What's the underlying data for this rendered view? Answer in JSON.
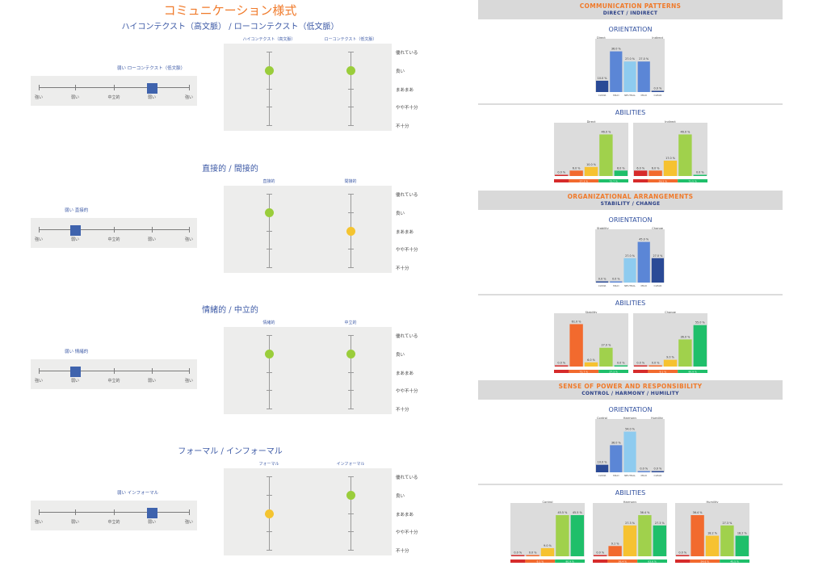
{
  "left_panel": {
    "title": "コミュニケーション様式",
    "scale_labels": [
      "優れている",
      "良い",
      "まあまあ",
      "やや不十分",
      "不十分"
    ],
    "slider_ticks": [
      "強い",
      "弱い",
      "中立的",
      "弱い",
      "強い"
    ],
    "sections": [
      {
        "title": "ハイコンテクスト（高文脈） / ローコンテクスト（低文脈）",
        "slider_caption": "弱い ローコンテクスト（低文脈）",
        "slider_position": 4,
        "columns": [
          "ハイコンテクスト（高文脈）",
          "ローコンテクスト（低文脈）"
        ],
        "ratings": [
          "良い",
          "良い"
        ],
        "dot_colors": [
          "#9acd3b",
          "#9acd3b"
        ]
      },
      {
        "title": "直接的 / 間接的",
        "slider_caption": "弱い 直接的",
        "slider_position": 2,
        "columns": [
          "直接的",
          "間接的"
        ],
        "ratings": [
          "良い",
          "まあまあ"
        ],
        "dot_colors": [
          "#9acd3b",
          "#f4c430"
        ]
      },
      {
        "title": "情緒的 / 中立的",
        "slider_caption": "弱い 情緒的",
        "slider_position": 2,
        "columns": [
          "情緒的",
          "中立的"
        ],
        "ratings": [
          "良い",
          "良い"
        ],
        "dot_colors": [
          "#9acd3b",
          "#9acd3b"
        ]
      },
      {
        "title": "フォーマル / インフォーマル",
        "slider_caption": "弱い インフォーマル",
        "slider_position": 4,
        "columns": [
          "フォーマル",
          "インフォーマル"
        ],
        "ratings": [
          "まあまあ",
          "良い"
        ],
        "dot_colors": [
          "#f4c430",
          "#9acd3b"
        ]
      }
    ]
  },
  "right_panel": {
    "orientation_heading": "ORIENTATION",
    "abilities_heading": "ABILITIES",
    "sections": [
      {
        "banner_title": "COMMUNICATION PATTERNS",
        "banner_subtitle": "DIRECT / INDIRECT"
      },
      {
        "banner_title": "ORGANIZATIONAL ARRANGEMENTS",
        "banner_subtitle": "STABILITY / CHANGE"
      },
      {
        "banner_title": "SENSE OF POWER AND RESPONSIBILITY",
        "banner_subtitle": "CONTROL / HARMONY / HUMILITY"
      }
    ]
  },
  "chart_data": [
    {
      "type": "bar",
      "title": "ORIENTATION",
      "section": "COMMUNICATION PATTERNS",
      "poles": [
        "Direct",
        "Indirect"
      ],
      "categories": [
        "CLEAR",
        "MILD",
        "NEUTRAL",
        "MILD",
        "CLEAR"
      ],
      "values": [
        10.0,
        36.0,
        27.0,
        27.0,
        0.0
      ],
      "colors": [
        "#2a4a96",
        "#5b86d6",
        "#8ecbef",
        "#5b86d6",
        "#2a4a96"
      ],
      "ylim": [
        0,
        40
      ]
    },
    {
      "type": "bar",
      "title": "ABILITIES - Direct",
      "section": "COMMUNICATION PATTERNS",
      "pole": "Direct",
      "values": [
        0.0,
        6.0,
        10.0,
        46.0,
        6.0
      ],
      "colors": [
        "#d62b2b",
        "#f26a2e",
        "#f6c231",
        "#a0d14c",
        "#1fbf6a"
      ],
      "summary": [
        "",
        "27.3 %",
        "72.7 %"
      ],
      "ylim": [
        0,
        50
      ]
    },
    {
      "type": "bar",
      "title": "ABILITIES - Indirect",
      "section": "COMMUNICATION PATTERNS",
      "pole": "Indirect",
      "values": [
        6.0,
        6.0,
        17.0,
        46.0,
        0.0
      ],
      "colors": [
        "#d62b2b",
        "#f26a2e",
        "#f6c231",
        "#a0d14c",
        "#1fbf6a"
      ],
      "summary": [
        "",
        "28.5 %",
        "71.5 %"
      ],
      "ylim": [
        0,
        50
      ]
    },
    {
      "type": "bar",
      "title": "ORIENTATION",
      "section": "ORGANIZATIONAL ARRANGEMENTS",
      "poles": [
        "Stability",
        "Change"
      ],
      "categories": [
        "CLEAR",
        "MILD",
        "NEUTRAL",
        "MILD",
        "CLEAR"
      ],
      "values": [
        0.0,
        0.0,
        27.0,
        45.0,
        27.0
      ],
      "colors": [
        "#2a4a96",
        "#5b86d6",
        "#8ecbef",
        "#5b86d6",
        "#2a4a96"
      ],
      "ylim": [
        0,
        50
      ]
    },
    {
      "type": "bar",
      "title": "ABILITIES - Stability",
      "section": "ORGANIZATIONAL ARRANGEMENTS",
      "pole": "Stability",
      "values": [
        0.0,
        61.0,
        6.0,
        27.0,
        0.0
      ],
      "colors": [
        "#d62b2b",
        "#f26a2e",
        "#f6c231",
        "#a0d14c",
        "#1fbf6a"
      ],
      "summary": [
        "",
        "72.7 %",
        "27.3 %"
      ],
      "ylim": [
        0,
        65
      ]
    },
    {
      "type": "bar",
      "title": "ABILITIES - Change",
      "section": "ORGANIZATIONAL ARRANGEMENTS",
      "pole": "Change",
      "values": [
        0.0,
        0.0,
        9.0,
        36.0,
        55.0
      ],
      "colors": [
        "#d62b2b",
        "#f26a2e",
        "#f6c231",
        "#a0d14c",
        "#1fbf6a"
      ],
      "summary": [
        "",
        "9.1 %",
        "90.9 %"
      ],
      "ylim": [
        0,
        60
      ]
    },
    {
      "type": "bar",
      "title": "ORIENTATION",
      "section": "SENSE OF POWER AND RESPONSIBILITY",
      "poles": [
        "Control",
        "Harmony",
        "Humility"
      ],
      "categories": [
        "CLEAR",
        "MILD",
        "NEUTRAL",
        "MILD",
        "CLEAR"
      ],
      "values": [
        10.0,
        36.0,
        54.0,
        0.0,
        0.0
      ],
      "colors": [
        "#2a4a96",
        "#5b86d6",
        "#8ecbef",
        "#5b86d6",
        "#2a4a96"
      ],
      "ylim": [
        0,
        60
      ]
    },
    {
      "type": "bar",
      "title": "ABILITIES - Control",
      "section": "SENSE OF POWER AND RESPONSIBILITY",
      "pole": "Control",
      "values": [
        0.0,
        0.0,
        9.0,
        45.5,
        45.5
      ],
      "colors": [
        "#d62b2b",
        "#f26a2e",
        "#f6c231",
        "#a0d14c",
        "#1fbf6a"
      ],
      "summary": [
        "",
        "9.1 %",
        "90.9 %"
      ],
      "ylim": [
        0,
        50
      ]
    },
    {
      "type": "bar",
      "title": "ABILITIES - Harmony",
      "section": "SENSE OF POWER AND RESPONSIBILITY",
      "pole": "Harmony",
      "values": [
        0.0,
        9.1,
        27.3,
        36.4,
        27.3
      ],
      "colors": [
        "#d62b2b",
        "#f26a2e",
        "#f6c231",
        "#a0d14c",
        "#1fbf6a"
      ],
      "summary": [
        "",
        "36.4 %",
        "63.6 %"
      ],
      "ylim": [
        0,
        40
      ]
    },
    {
      "type": "bar",
      "title": "ABILITIES - Humility",
      "section": "SENSE OF POWER AND RESPONSIBILITY",
      "pole": "Humility",
      "values": [
        0.0,
        36.4,
        18.2,
        27.3,
        18.2
      ],
      "colors": [
        "#d62b2b",
        "#f26a2e",
        "#f6c231",
        "#a0d14c",
        "#1fbf6a"
      ],
      "summary": [
        "",
        "54.6 %",
        "45.5 %"
      ],
      "ylim": [
        0,
        40
      ]
    }
  ]
}
